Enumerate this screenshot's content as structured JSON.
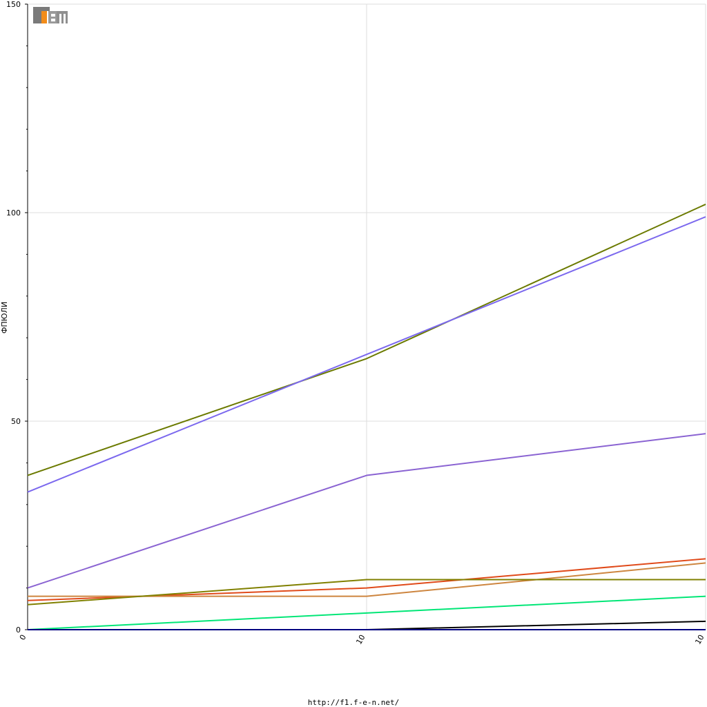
{
  "footer_url": "http://f1.f-e-n.net/",
  "chart_data": {
    "type": "line",
    "ylabel": "ФПЮЛИ",
    "ylim": [
      0,
      150
    ],
    "y_ticks": [
      0,
      50,
      100,
      150
    ],
    "x_ticks": [
      "0",
      "10",
      "10"
    ],
    "grid": true,
    "logo": "F1EN",
    "series": [
      {
        "color": "#6b7a00",
        "values": [
          37,
          65,
          102
        ]
      },
      {
        "color": "#7b68ee",
        "values": [
          33,
          66,
          99
        ]
      },
      {
        "color": "#8a63d2",
        "values": [
          10,
          37,
          47
        ]
      },
      {
        "color": "#e04a1a",
        "values": [
          7,
          10,
          17
        ]
      },
      {
        "color": "#cd853f",
        "values": [
          8,
          8,
          16
        ]
      },
      {
        "color": "#808000",
        "values": [
          6,
          12,
          12
        ]
      },
      {
        "color": "#00e676",
        "values": [
          0,
          4,
          8
        ]
      },
      {
        "color": "#000000",
        "values": [
          0,
          0,
          2
        ]
      },
      {
        "color": "#000080",
        "values": [
          0,
          0,
          0
        ]
      }
    ]
  }
}
